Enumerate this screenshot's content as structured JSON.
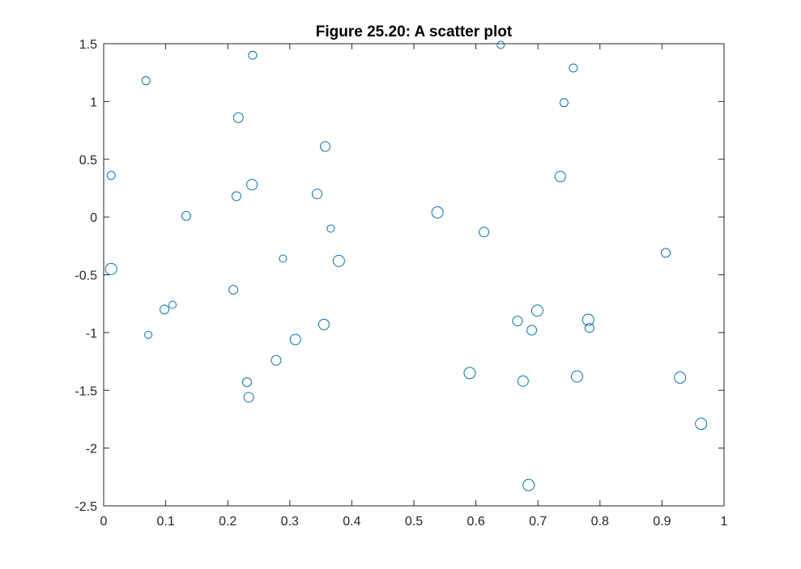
{
  "chart_data": {
    "type": "scatter",
    "title": "Figure 25.20: A scatter plot",
    "xlabel": "",
    "ylabel": "",
    "xlim": [
      0,
      1
    ],
    "ylim": [
      -2.5,
      1.5
    ],
    "x_ticks": [
      "0",
      "0.1",
      "0.2",
      "0.3",
      "0.4",
      "0.5",
      "0.6",
      "0.7",
      "0.8",
      "0.9",
      "1"
    ],
    "y_ticks": [
      "1.5",
      "1",
      "0.5",
      "0",
      "-0.5",
      "-1",
      "-1.5",
      "-2",
      "-2.5"
    ],
    "grid": false,
    "box": true,
    "marker": "circle-open",
    "series": [
      {
        "color": "#0072BD",
        "points": [
          {
            "x": 0.24,
            "y": 1.4,
            "s": 5
          },
          {
            "x": 0.068,
            "y": 1.18,
            "s": 5
          },
          {
            "x": 0.217,
            "y": 0.86,
            "s": 6
          },
          {
            "x": 0.357,
            "y": 0.61,
            "s": 6
          },
          {
            "x": 0.012,
            "y": 0.36,
            "s": 5
          },
          {
            "x": 0.239,
            "y": 0.28,
            "s": 6.5
          },
          {
            "x": 0.214,
            "y": 0.18,
            "s": 5.5
          },
          {
            "x": 0.344,
            "y": 0.2,
            "s": 6
          },
          {
            "x": 0.133,
            "y": 0.01,
            "s": 5.5
          },
          {
            "x": 0.538,
            "y": 0.04,
            "s": 7
          },
          {
            "x": 0.366,
            "y": -0.1,
            "s": 4.5
          },
          {
            "x": 0.613,
            "y": -0.13,
            "s": 6
          },
          {
            "x": 0.289,
            "y": -0.36,
            "s": 4.5
          },
          {
            "x": 0.379,
            "y": -0.38,
            "s": 7
          },
          {
            "x": 0.012,
            "y": -0.45,
            "s": 7
          },
          {
            "x": 0.209,
            "y": -0.63,
            "s": 5.5
          },
          {
            "x": 0.111,
            "y": -0.76,
            "s": 4.5
          },
          {
            "x": 0.098,
            "y": -0.8,
            "s": 5.5
          },
          {
            "x": 0.072,
            "y": -1.02,
            "s": 4.5
          },
          {
            "x": 0.309,
            "y": -1.06,
            "s": 6.5
          },
          {
            "x": 0.355,
            "y": -0.93,
            "s": 6.5
          },
          {
            "x": 0.278,
            "y": -1.24,
            "s": 6
          },
          {
            "x": 0.231,
            "y": -1.43,
            "s": 5.5
          },
          {
            "x": 0.234,
            "y": -1.56,
            "s": 6
          },
          {
            "x": 0.64,
            "y": 1.49,
            "s": 4.5
          },
          {
            "x": 0.757,
            "y": 1.29,
            "s": 5
          },
          {
            "x": 0.742,
            "y": 0.99,
            "s": 5
          },
          {
            "x": 0.736,
            "y": 0.35,
            "s": 6.5
          },
          {
            "x": 0.906,
            "y": -0.31,
            "s": 5.5
          },
          {
            "x": 0.699,
            "y": -0.81,
            "s": 7
          },
          {
            "x": 0.667,
            "y": -0.9,
            "s": 6
          },
          {
            "x": 0.69,
            "y": -0.98,
            "s": 6
          },
          {
            "x": 0.781,
            "y": -0.89,
            "s": 7
          },
          {
            "x": 0.783,
            "y": -0.96,
            "s": 5.5
          },
          {
            "x": 0.59,
            "y": -1.35,
            "s": 7
          },
          {
            "x": 0.676,
            "y": -1.42,
            "s": 6.5
          },
          {
            "x": 0.763,
            "y": -1.38,
            "s": 7
          },
          {
            "x": 0.929,
            "y": -1.39,
            "s": 7
          },
          {
            "x": 0.963,
            "y": -1.79,
            "s": 7
          },
          {
            "x": 0.685,
            "y": -2.32,
            "s": 7
          }
        ]
      }
    ]
  }
}
